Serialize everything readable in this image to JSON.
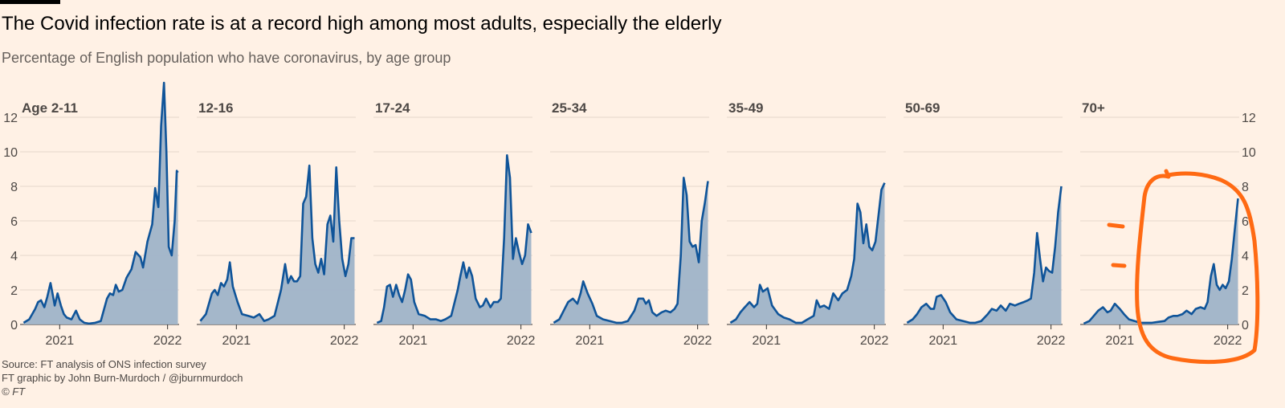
{
  "header": {
    "title": "The Covid infection rate is at a record high among most adults, especially the elderly",
    "subtitle": "Percentage of English population who have coronavirus, by age group"
  },
  "footer": {
    "source": "Source: FT analysis of ONS infection survey",
    "credit": "FT graphic by John Burn-Murdoch / @jburnmurdoch",
    "copyright": "© FT"
  },
  "colors": {
    "background": "#fff1e5",
    "line": "#0f5499",
    "area": "#9fb3c8",
    "annotation": "#ff6a13",
    "grid": "#e5d8cc"
  },
  "chart_data": {
    "type": "area",
    "layout": "small-multiples",
    "ylim": [
      0,
      12
    ],
    "y_ticks": [
      0,
      2,
      4,
      6,
      8,
      10,
      12
    ],
    "y_tick_labels": [
      "0",
      "2",
      "4",
      "6",
      "8",
      "10",
      "12"
    ],
    "xlim": [
      "2020-08",
      "2022-01"
    ],
    "x_ticks": [
      "2021-01-01",
      "2022-01-01"
    ],
    "x_tick_labels": [
      "2021",
      "2022"
    ],
    "grid": true,
    "series": [
      {
        "name": "Age 2-11",
        "x": [
          "2020-09-01",
          "2020-09-20",
          "2020-10-10",
          "2020-10-20",
          "2020-10-30",
          "2020-11-10",
          "2020-11-20",
          "2020-12-01",
          "2020-12-10",
          "2020-12-15",
          "2020-12-25",
          "2021-01-05",
          "2021-01-15",
          "2021-01-25",
          "2021-02-10",
          "2021-02-25",
          "2021-03-10",
          "2021-03-25",
          "2021-04-10",
          "2021-05-01",
          "2021-05-20",
          "2021-06-10",
          "2021-06-20",
          "2021-07-01",
          "2021-07-10",
          "2021-07-20",
          "2021-08-01",
          "2021-08-15",
          "2021-09-01",
          "2021-09-15",
          "2021-10-01",
          "2021-10-10",
          "2021-10-25",
          "2021-11-10",
          "2021-11-20",
          "2021-12-01",
          "2021-12-10",
          "2021-12-20",
          "2021-12-28",
          "2022-01-05",
          "2022-01-15",
          "2022-01-25",
          "2022-02-01",
          "2022-02-05"
        ],
        "values": [
          0.1,
          0.3,
          0.9,
          1.3,
          1.4,
          1.0,
          1.6,
          2.4,
          1.6,
          1.1,
          1.8,
          1.1,
          0.6,
          0.4,
          0.3,
          0.8,
          0.3,
          0.1,
          0.05,
          0.1,
          0.2,
          1.5,
          1.8,
          1.7,
          2.3,
          1.9,
          2.0,
          2.7,
          3.2,
          4.2,
          3.9,
          3.3,
          4.8,
          5.8,
          7.9,
          6.8,
          11.5,
          14.0,
          10.0,
          4.5,
          4.0,
          6.0,
          8.9,
          8.8
        ]
      },
      {
        "name": "12-16",
        "x": [
          "2020-09-01",
          "2020-09-20",
          "2020-10-10",
          "2020-10-20",
          "2020-10-30",
          "2020-11-10",
          "2020-11-20",
          "2020-12-01",
          "2020-12-10",
          "2020-12-20",
          "2021-01-05",
          "2021-01-20",
          "2021-02-10",
          "2021-03-01",
          "2021-03-20",
          "2021-04-05",
          "2021-04-20",
          "2021-05-10",
          "2021-06-01",
          "2021-06-15",
          "2021-06-25",
          "2021-07-05",
          "2021-07-15",
          "2021-07-25",
          "2021-08-05",
          "2021-08-15",
          "2021-08-25",
          "2021-09-05",
          "2021-09-15",
          "2021-09-25",
          "2021-10-05",
          "2021-10-15",
          "2021-10-25",
          "2021-11-05",
          "2021-11-15",
          "2021-11-25",
          "2021-12-05",
          "2021-12-15",
          "2021-12-25",
          "2022-01-05",
          "2022-01-15",
          "2022-01-25",
          "2022-02-05"
        ],
        "values": [
          0.2,
          0.6,
          1.8,
          2.0,
          1.7,
          2.4,
          2.2,
          2.6,
          3.6,
          2.2,
          1.3,
          0.6,
          0.5,
          0.4,
          0.6,
          0.2,
          0.3,
          0.5,
          2.0,
          3.5,
          2.4,
          2.8,
          2.5,
          2.5,
          2.8,
          7.0,
          7.4,
          9.2,
          5.0,
          3.5,
          3.0,
          3.8,
          2.9,
          5.8,
          6.3,
          4.8,
          9.1,
          6.0,
          3.8,
          2.8,
          3.5,
          5.0,
          5.0
        ]
      },
      {
        "name": "17-24",
        "x": [
          "2020-09-01",
          "2020-09-15",
          "2020-09-25",
          "2020-10-05",
          "2020-10-15",
          "2020-10-25",
          "2020-11-05",
          "2020-11-15",
          "2020-11-25",
          "2020-12-05",
          "2020-12-15",
          "2020-12-25",
          "2021-01-05",
          "2021-01-20",
          "2021-02-10",
          "2021-03-01",
          "2021-03-20",
          "2021-04-05",
          "2021-04-20",
          "2021-05-10",
          "2021-06-01",
          "2021-06-10",
          "2021-06-20",
          "2021-07-01",
          "2021-07-10",
          "2021-07-20",
          "2021-08-01",
          "2021-08-15",
          "2021-08-25",
          "2021-09-05",
          "2021-09-20",
          "2021-10-01",
          "2021-10-15",
          "2021-10-25",
          "2021-11-05",
          "2021-11-15",
          "2021-11-25",
          "2021-12-05",
          "2021-12-15",
          "2021-12-25",
          "2022-01-05",
          "2022-01-15",
          "2022-01-25",
          "2022-02-05"
        ],
        "values": [
          0.1,
          0.2,
          1.0,
          2.2,
          2.3,
          1.6,
          2.3,
          1.7,
          1.3,
          2.0,
          2.9,
          2.6,
          1.3,
          0.6,
          0.5,
          0.3,
          0.3,
          0.2,
          0.3,
          0.5,
          2.0,
          2.8,
          3.6,
          2.7,
          3.3,
          2.8,
          1.5,
          1.0,
          1.1,
          1.5,
          1.0,
          1.3,
          1.3,
          1.5,
          5.0,
          9.8,
          8.5,
          3.8,
          5.0,
          4.2,
          3.5,
          4.0,
          5.8,
          5.3
        ]
      },
      {
        "name": "25-34",
        "x": [
          "2020-09-01",
          "2020-09-20",
          "2020-10-05",
          "2020-10-20",
          "2020-11-05",
          "2020-11-20",
          "2020-12-01",
          "2020-12-10",
          "2020-12-25",
          "2021-01-10",
          "2021-01-25",
          "2021-02-15",
          "2021-03-10",
          "2021-04-01",
          "2021-04-20",
          "2021-05-10",
          "2021-06-01",
          "2021-06-15",
          "2021-07-01",
          "2021-07-10",
          "2021-07-20",
          "2021-08-01",
          "2021-08-15",
          "2021-09-01",
          "2021-09-15",
          "2021-10-01",
          "2021-10-15",
          "2021-10-25",
          "2021-11-05",
          "2021-11-15",
          "2021-11-25",
          "2021-12-05",
          "2021-12-15",
          "2021-12-25",
          "2022-01-05",
          "2022-01-15",
          "2022-01-25",
          "2022-02-05"
        ],
        "values": [
          0.1,
          0.3,
          0.8,
          1.3,
          1.5,
          1.2,
          1.8,
          2.5,
          1.8,
          1.2,
          0.5,
          0.3,
          0.2,
          0.1,
          0.1,
          0.2,
          0.8,
          1.5,
          1.5,
          1.2,
          1.4,
          0.7,
          0.5,
          0.7,
          0.8,
          0.7,
          0.9,
          1.2,
          4.0,
          8.5,
          7.5,
          4.8,
          4.5,
          4.6,
          3.6,
          6.0,
          7.0,
          8.3
        ]
      },
      {
        "name": "35-49",
        "x": [
          "2020-09-01",
          "2020-09-20",
          "2020-10-05",
          "2020-10-20",
          "2020-11-05",
          "2020-11-20",
          "2020-12-01",
          "2020-12-10",
          "2020-12-20",
          "2021-01-05",
          "2021-01-20",
          "2021-02-10",
          "2021-03-01",
          "2021-03-20",
          "2021-04-10",
          "2021-05-01",
          "2021-05-20",
          "2021-06-10",
          "2021-06-20",
          "2021-07-01",
          "2021-07-15",
          "2021-08-01",
          "2021-08-15",
          "2021-09-01",
          "2021-09-15",
          "2021-10-01",
          "2021-10-15",
          "2021-10-25",
          "2021-11-05",
          "2021-11-15",
          "2021-11-25",
          "2021-12-05",
          "2021-12-15",
          "2021-12-25",
          "2022-01-05",
          "2022-01-15",
          "2022-01-25",
          "2022-02-05"
        ],
        "values": [
          0.1,
          0.3,
          0.7,
          1.0,
          1.3,
          1.0,
          1.2,
          2.3,
          1.9,
          2.1,
          1.1,
          0.6,
          0.4,
          0.3,
          0.1,
          0.1,
          0.3,
          0.5,
          1.4,
          1.0,
          1.1,
          0.9,
          1.8,
          1.4,
          1.8,
          2.0,
          2.8,
          3.8,
          7.0,
          6.5,
          4.7,
          5.8,
          4.5,
          4.3,
          4.8,
          6.3,
          7.8,
          8.2
        ]
      },
      {
        "name": "50-69",
        "x": [
          "2020-09-01",
          "2020-09-20",
          "2020-10-05",
          "2020-10-20",
          "2020-11-05",
          "2020-11-20",
          "2020-12-01",
          "2020-12-10",
          "2020-12-25",
          "2021-01-10",
          "2021-01-25",
          "2021-02-15",
          "2021-03-10",
          "2021-04-01",
          "2021-04-20",
          "2021-05-10",
          "2021-06-01",
          "2021-06-15",
          "2021-07-01",
          "2021-07-15",
          "2021-08-01",
          "2021-08-15",
          "2021-09-01",
          "2021-09-15",
          "2021-10-01",
          "2021-10-15",
          "2021-10-25",
          "2021-11-05",
          "2021-11-15",
          "2021-11-25",
          "2021-12-05",
          "2021-12-15",
          "2021-12-25",
          "2022-01-05",
          "2022-01-15",
          "2022-01-25",
          "2022-02-05"
        ],
        "values": [
          0.1,
          0.3,
          0.6,
          1.0,
          1.2,
          0.9,
          0.9,
          1.6,
          1.7,
          1.3,
          0.7,
          0.3,
          0.2,
          0.1,
          0.1,
          0.2,
          0.6,
          0.9,
          0.8,
          1.1,
          0.8,
          1.2,
          1.1,
          1.2,
          1.3,
          1.4,
          1.5,
          3.0,
          5.3,
          3.8,
          2.5,
          3.3,
          3.1,
          3.0,
          4.5,
          6.5,
          8.0
        ]
      },
      {
        "name": "70+",
        "x": [
          "2020-09-01",
          "2020-09-20",
          "2020-10-05",
          "2020-10-20",
          "2020-11-05",
          "2020-11-20",
          "2020-12-01",
          "2020-12-15",
          "2021-01-01",
          "2021-01-15",
          "2021-02-01",
          "2021-02-20",
          "2021-03-10",
          "2021-04-01",
          "2021-04-20",
          "2021-05-10",
          "2021-06-01",
          "2021-06-15",
          "2021-07-01",
          "2021-07-15",
          "2021-08-01",
          "2021-08-15",
          "2021-09-01",
          "2021-09-15",
          "2021-10-01",
          "2021-10-15",
          "2021-10-25",
          "2021-11-05",
          "2021-11-15",
          "2021-11-25",
          "2021-12-05",
          "2021-12-15",
          "2021-12-25",
          "2022-01-05",
          "2022-01-15",
          "2022-01-25",
          "2022-02-05"
        ],
        "values": [
          0.05,
          0.2,
          0.5,
          0.8,
          1.0,
          0.7,
          0.8,
          1.2,
          0.9,
          0.6,
          0.3,
          0.2,
          0.1,
          0.1,
          0.1,
          0.15,
          0.2,
          0.4,
          0.5,
          0.5,
          0.6,
          0.8,
          0.6,
          0.9,
          1.0,
          0.9,
          1.3,
          2.8,
          3.5,
          2.3,
          2.0,
          2.3,
          2.1,
          2.5,
          3.8,
          5.5,
          7.3
        ]
      }
    ]
  }
}
